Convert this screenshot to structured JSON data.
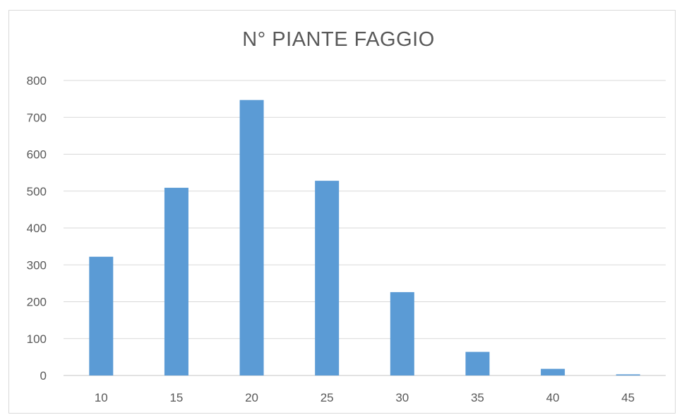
{
  "chart_data": {
    "type": "bar",
    "title": "N° PIANTE FAGGIO",
    "xlabel": "",
    "ylabel": "",
    "categories": [
      "10",
      "15",
      "20",
      "25",
      "30",
      "35",
      "40",
      "45"
    ],
    "values": [
      322,
      509,
      747,
      528,
      226,
      64,
      18,
      3
    ],
    "ylim": [
      0,
      800
    ],
    "yticks": [
      0,
      100,
      200,
      300,
      400,
      500,
      600,
      700,
      800
    ],
    "grid": true,
    "legend": "none",
    "bar_color": "#5b9bd5",
    "grid_color": "#d9d9d9"
  }
}
